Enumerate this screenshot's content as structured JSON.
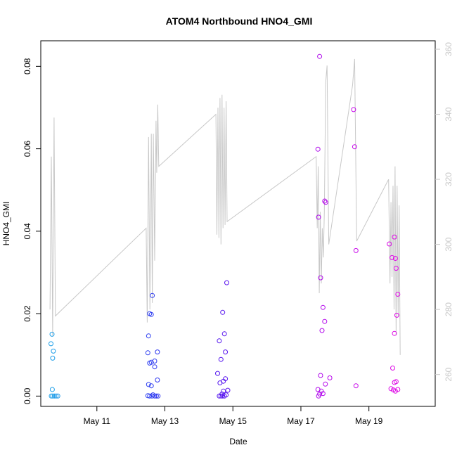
{
  "chart_data": {
    "type": "scatter",
    "title": "ATOM4 Northbound HNO4_GMI",
    "xlabel": "Date",
    "ylabel": "HNO4_GMI",
    "x_unit": "day of May",
    "xlim": [
      9.35,
      20.95
    ],
    "ylim": [
      -0.0025,
      0.0862
    ],
    "x_ticks": [
      {
        "value": 11,
        "label": "May 11"
      },
      {
        "value": 13,
        "label": "May 13"
      },
      {
        "value": 15,
        "label": "May 15"
      },
      {
        "value": 17,
        "label": "May 17"
      },
      {
        "value": 19,
        "label": "May 19"
      }
    ],
    "y_ticks": [
      {
        "value": 0.0,
        "label": "0.00"
      },
      {
        "value": 0.02,
        "label": "0.02"
      },
      {
        "value": 0.04,
        "label": "0.04"
      },
      {
        "value": 0.06,
        "label": "0.06"
      },
      {
        "value": 0.08,
        "label": "0.08"
      }
    ],
    "secondary_axis": {
      "side": "right",
      "description": "flight altitude trace (gray line)",
      "ylim": [
        250.2,
        362.6
      ],
      "ticks": [
        {
          "value": 260,
          "label": "260"
        },
        {
          "value": 280,
          "label": "280"
        },
        {
          "value": 300,
          "label": "300"
        },
        {
          "value": 320,
          "label": "320"
        },
        {
          "value": 340,
          "label": "340"
        },
        {
          "value": 360,
          "label": "360"
        }
      ]
    },
    "colors": {
      "trace": "#c8c8c8",
      "marker_gradient": [
        "#1ea0e8",
        "#2455f0",
        "#3a1ef0",
        "#7a10ee",
        "#b808ec",
        "#e00ae6"
      ],
      "axis": "#000000",
      "secondary_axis": "#c8c8c8"
    },
    "series": [
      {
        "name": "HNO4_GMI",
        "points": [
          [
            9.68,
            0.015
          ],
          [
            9.65,
            0.0127
          ],
          [
            9.72,
            0.0109
          ],
          [
            9.7,
            0.0092
          ],
          [
            9.69,
            0.0016
          ],
          [
            9.66,
            0.0
          ],
          [
            9.75,
            0.0
          ],
          [
            9.7,
            0.0
          ],
          [
            9.8,
            0.0
          ],
          [
            9.85,
            0.0
          ],
          [
            12.5,
            0.0105
          ],
          [
            12.52,
            0.0146
          ],
          [
            12.55,
            0.02
          ],
          [
            12.6,
            0.0198
          ],
          [
            12.63,
            0.0244
          ],
          [
            12.55,
            0.008
          ],
          [
            12.6,
            0.0082
          ],
          [
            12.7,
            0.0085
          ],
          [
            12.78,
            0.0107
          ],
          [
            12.7,
            0.0071
          ],
          [
            12.78,
            0.0039
          ],
          [
            12.52,
            0.0028
          ],
          [
            12.6,
            0.0025
          ],
          [
            12.55,
            0.0
          ],
          [
            12.62,
            0.0
          ],
          [
            12.7,
            0.0
          ],
          [
            12.75,
            0.0
          ],
          [
            12.8,
            0.0
          ],
          [
            12.65,
            0.0003
          ],
          [
            12.5,
            0.0001
          ],
          [
            14.55,
            0.0055
          ],
          [
            14.6,
            0.0134
          ],
          [
            14.65,
            0.0089
          ],
          [
            14.7,
            0.0203
          ],
          [
            14.75,
            0.0151
          ],
          [
            14.78,
            0.0107
          ],
          [
            14.82,
            0.0275
          ],
          [
            14.62,
            0.0032
          ],
          [
            14.72,
            0.0036
          ],
          [
            14.78,
            0.0042
          ],
          [
            14.85,
            0.0014
          ],
          [
            14.72,
            0.0012
          ],
          [
            14.6,
            0.0
          ],
          [
            14.65,
            0.0
          ],
          [
            14.7,
            0.0
          ],
          [
            14.75,
            0.0
          ],
          [
            14.8,
            0.0003
          ],
          [
            14.68,
            0.0005
          ],
          [
            17.5,
            0.0599
          ],
          [
            17.55,
            0.0824
          ],
          [
            17.52,
            0.0434
          ],
          [
            17.58,
            0.0287
          ],
          [
            17.65,
            0.0215
          ],
          [
            17.62,
            0.0159
          ],
          [
            17.7,
            0.0473
          ],
          [
            17.73,
            0.047
          ],
          [
            17.7,
            0.0181
          ],
          [
            17.72,
            0.0029
          ],
          [
            17.58,
            0.005
          ],
          [
            17.85,
            0.0044
          ],
          [
            17.5,
            0.0016
          ],
          [
            17.55,
            0.0005
          ],
          [
            17.6,
            0.0012
          ],
          [
            17.52,
            0.0
          ],
          [
            17.65,
            0.0006
          ],
          [
            18.55,
            0.0695
          ],
          [
            18.58,
            0.0605
          ],
          [
            18.62,
            0.0353
          ],
          [
            18.62,
            0.0025
          ],
          [
            19.6,
            0.0369
          ],
          [
            19.68,
            0.0336
          ],
          [
            19.75,
            0.0386
          ],
          [
            19.78,
            0.0334
          ],
          [
            19.8,
            0.031
          ],
          [
            19.85,
            0.0247
          ],
          [
            19.82,
            0.0196
          ],
          [
            19.75,
            0.0152
          ],
          [
            19.7,
            0.0068
          ],
          [
            19.75,
            0.0033
          ],
          [
            19.8,
            0.0035
          ],
          [
            19.65,
            0.0018
          ],
          [
            19.72,
            0.0015
          ],
          [
            19.78,
            0.0012
          ],
          [
            19.85,
            0.0016
          ]
        ]
      }
    ],
    "altitude_trace": [
      [
        9.62,
        280
      ],
      [
        9.66,
        327
      ],
      [
        9.7,
        272
      ],
      [
        9.74,
        339
      ],
      [
        9.78,
        278
      ],
      [
        12.45,
        305
      ],
      [
        12.48,
        276
      ],
      [
        12.52,
        333
      ],
      [
        12.56,
        280
      ],
      [
        12.6,
        334
      ],
      [
        12.63,
        282
      ],
      [
        12.66,
        334
      ],
      [
        12.7,
        295
      ],
      [
        12.74,
        338
      ],
      [
        12.76,
        322
      ],
      [
        12.79,
        343
      ],
      [
        12.82,
        324
      ],
      [
        14.5,
        340
      ],
      [
        14.53,
        303
      ],
      [
        14.56,
        342
      ],
      [
        14.59,
        302
      ],
      [
        14.62,
        345
      ],
      [
        14.65,
        300
      ],
      [
        14.68,
        346
      ],
      [
        14.71,
        305
      ],
      [
        14.74,
        342
      ],
      [
        14.77,
        306
      ],
      [
        14.8,
        344
      ],
      [
        14.83,
        307
      ],
      [
        17.45,
        327
      ],
      [
        17.48,
        305
      ],
      [
        17.51,
        324
      ],
      [
        17.54,
        285
      ],
      [
        17.57,
        310
      ],
      [
        17.6,
        288
      ],
      [
        17.63,
        305
      ],
      [
        17.66,
        296
      ],
      [
        17.69,
        310
      ],
      [
        17.73,
        350
      ],
      [
        17.77,
        355
      ],
      [
        17.82,
        300
      ],
      [
        18.52,
        349
      ],
      [
        18.58,
        357
      ],
      [
        18.64,
        301
      ],
      [
        19.58,
        320
      ],
      [
        19.62,
        288
      ],
      [
        19.65,
        313
      ],
      [
        19.68,
        290
      ],
      [
        19.71,
        318
      ],
      [
        19.74,
        280
      ],
      [
        19.77,
        324
      ],
      [
        19.8,
        272
      ],
      [
        19.83,
        318
      ],
      [
        19.86,
        278
      ],
      [
        19.89,
        312
      ],
      [
        19.92,
        266
      ]
    ]
  }
}
